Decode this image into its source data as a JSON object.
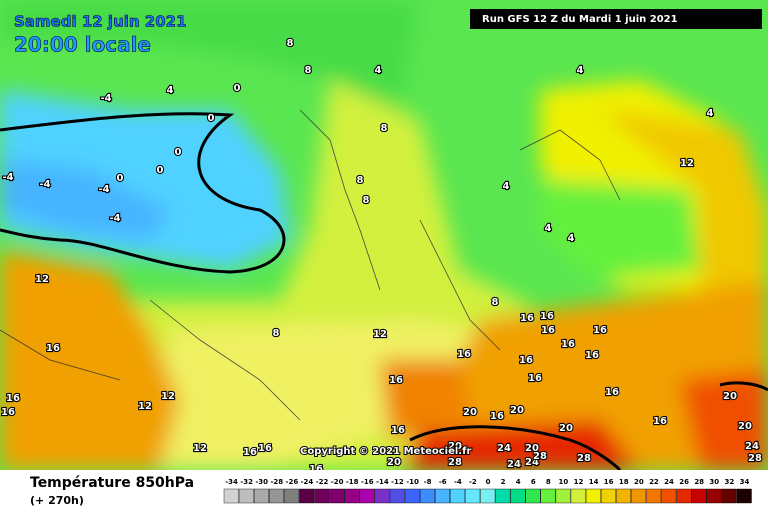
{
  "header": {
    "date": "Samedi 12 juin 2021",
    "time": "20:00 locale",
    "run": "Run GFS 12 Z du Mardi 1 juin 2021"
  },
  "copyright": "Copyright © 2021 Meteociel.fr",
  "legend": {
    "title": "Température 850hPa",
    "subtitle": "(+ 270h)",
    "ticks": [
      -34,
      -32,
      -30,
      -28,
      -26,
      -24,
      -22,
      -20,
      -18,
      -16,
      -14,
      -12,
      -10,
      -8,
      -6,
      -4,
      -2,
      0,
      2,
      4,
      6,
      8,
      10,
      12,
      14,
      16,
      18,
      20,
      22,
      24,
      26,
      28,
      30,
      32,
      34
    ],
    "colors": [
      "#d2d2d2",
      "#bebebe",
      "#aaaaaa",
      "#969696",
      "#808080",
      "#5a0046",
      "#6e005a",
      "#82006e",
      "#960087",
      "#aa00aa",
      "#7832c8",
      "#5050e6",
      "#3c64ff",
      "#3c8cff",
      "#46b4ff",
      "#50d2ff",
      "#64e6ff",
      "#78f0f0",
      "#00dcaa",
      "#00dc82",
      "#32e650",
      "#64f03c",
      "#a0f03c",
      "#d2f03c",
      "#f0f000",
      "#f0d200",
      "#f0b400",
      "#f09600",
      "#f07800",
      "#f05000",
      "#e62800",
      "#c80000",
      "#960000",
      "#640000",
      "#1e0000"
    ]
  },
  "contour_labels": [
    8,
    8,
    4,
    4,
    4,
    -4,
    0,
    0,
    8,
    8,
    8,
    -4,
    -4,
    -4,
    -4,
    0,
    0,
    0,
    12,
    4,
    4,
    4,
    4,
    12,
    16,
    16,
    16,
    8,
    12,
    8,
    16,
    16,
    16,
    16,
    16,
    16,
    16,
    16,
    16,
    16,
    12,
    12,
    16,
    12,
    16,
    16,
    16,
    20,
    28,
    20,
    20,
    16,
    20,
    20,
    24,
    20,
    24,
    28,
    24,
    28,
    16,
    20,
    20,
    24,
    28,
    16
  ]
}
